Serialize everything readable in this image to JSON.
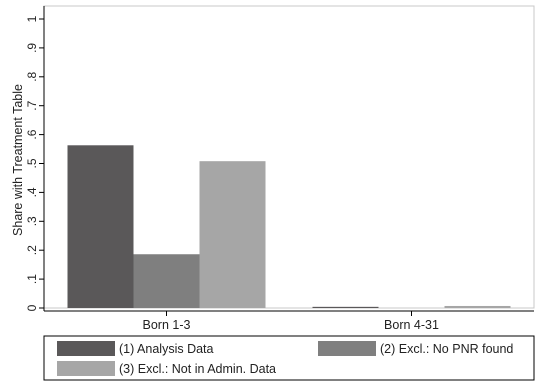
{
  "chart_data": {
    "type": "bar",
    "ylabel": "Share with Treatment Table",
    "xlabel": "",
    "ylim": [
      0,
      1
    ],
    "yticks": [
      "0",
      ".1",
      ".2",
      ".3",
      ".4",
      ".5",
      ".6",
      ".7",
      ".8",
      ".9",
      "1"
    ],
    "categories": [
      "Born 1-3",
      "Born 4-31"
    ],
    "series": [
      {
        "name": "(1) Analysis Data",
        "color": "#5a5859",
        "values": [
          0.563,
          0.004
        ]
      },
      {
        "name": "(2) Excl.: No PNR found",
        "color": "#7f7f7f",
        "values": [
          0.186,
          0.0
        ]
      },
      {
        "name": "(3) Excl.: Not in  Admin. Data",
        "color": "#a6a6a6",
        "values": [
          0.508,
          0.007
        ]
      }
    ],
    "grid": false,
    "legend_position": "bottom"
  }
}
